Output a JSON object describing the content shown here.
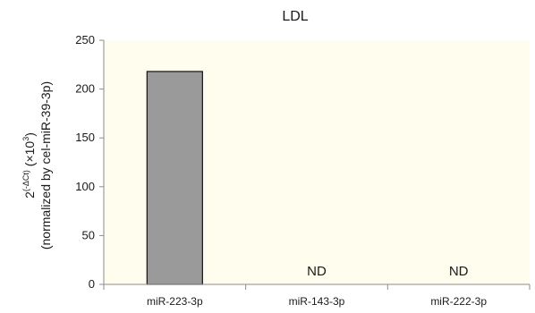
{
  "chart_data": {
    "type": "bar",
    "title": "LDL",
    "categories": [
      "miR-223-3p",
      "miR-143-3p",
      "miR-222-3p"
    ],
    "values": [
      218,
      null,
      null
    ],
    "data_labels": [
      "",
      "ND",
      "ND"
    ],
    "ylabel": {
      "line1_base": "2",
      "line1_sup": "(-ΔCt)",
      "line1_mid": " (×10",
      "line1_sup2": "3",
      "line1_end": ")",
      "line2": "(normalized by cel-miR-39-3p)"
    },
    "xlabel": "",
    "ylim": [
      0,
      250
    ],
    "yticks": [
      0,
      50,
      100,
      150,
      200,
      250
    ],
    "grid": false,
    "legend": "none",
    "colors": {
      "plot_background": "#fffdee",
      "bar_fill": "#9a9a9a",
      "bar_stroke": "#111111",
      "axis": "#8c8c8c"
    }
  }
}
